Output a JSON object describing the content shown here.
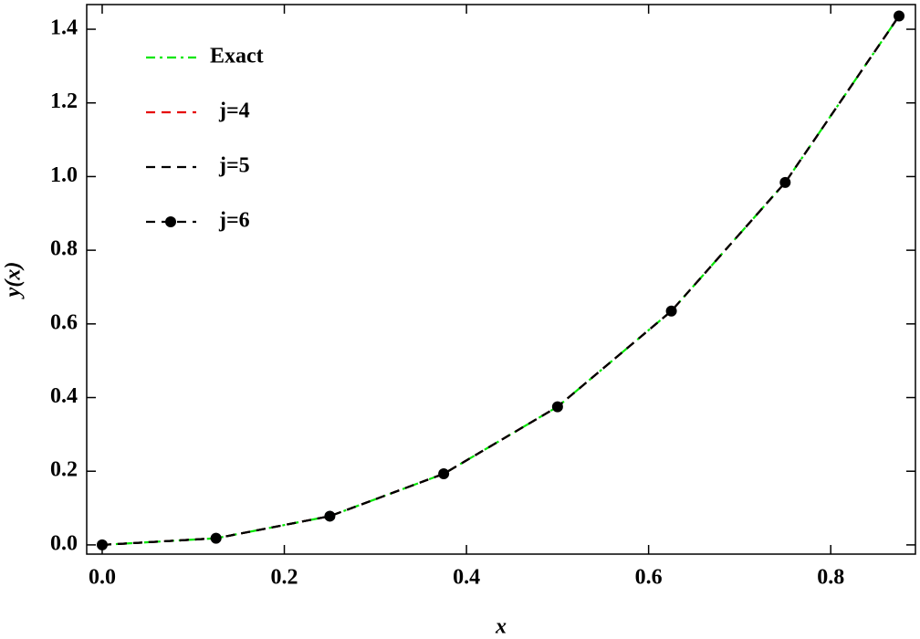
{
  "chart_data": {
    "type": "line",
    "x_label": "x",
    "y_label": "y(x)",
    "x": [
      0,
      0.125,
      0.25,
      0.375,
      0.5,
      0.625,
      0.75,
      0.875
    ],
    "series": [
      {
        "name": "Exact",
        "color": "#00e600",
        "dash": "dashdot",
        "marker": false,
        "values": [
          0,
          0.018,
          0.078,
          0.193,
          0.375,
          0.635,
          0.984,
          1.436
        ]
      },
      {
        "name": "j=4",
        "color": "#e60000",
        "dash": "dashed",
        "marker": false,
        "values": [
          0,
          0.018,
          0.078,
          0.193,
          0.375,
          0.635,
          0.984,
          1.436
        ]
      },
      {
        "name": "j=5",
        "color": "#000000",
        "dash": "dashed",
        "marker": false,
        "values": [
          0,
          0.018,
          0.078,
          0.193,
          0.375,
          0.635,
          0.984,
          1.436
        ]
      },
      {
        "name": "j=6",
        "color": "#000000",
        "dash": "dashed",
        "marker": true,
        "values": [
          0,
          0.018,
          0.078,
          0.193,
          0.375,
          0.635,
          0.984,
          1.436
        ]
      }
    ],
    "xlim": [
      -0.017,
      0.893
    ],
    "ylim": [
      -0.025,
      1.467
    ],
    "xticks": [
      {
        "value": 0,
        "label": "0.0"
      },
      0.2,
      0.4,
      0.6,
      0.8
    ],
    "yticks": [
      {
        "value": 0,
        "label": "0.0"
      },
      0.2,
      0.4,
      0.6,
      0.8,
      {
        "value": 1,
        "label": "1.0"
      },
      1.2,
      1.4
    ],
    "legend": "upper left",
    "grid": false
  }
}
